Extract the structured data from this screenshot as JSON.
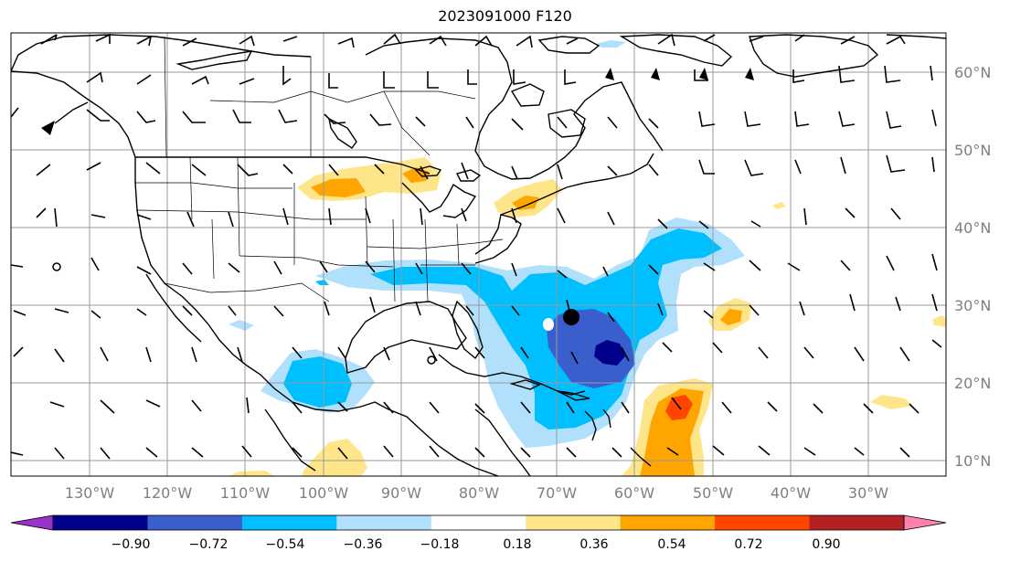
{
  "title": "2023091000 F120",
  "longitude_labels": [
    "130°W",
    "120°W",
    "110°W",
    "100°W",
    "90°W",
    "80°W",
    "70°W",
    "60°W",
    "50°W",
    "40°W",
    "30°W"
  ],
  "latitude_labels": [
    "60°N",
    "50°N",
    "40°N",
    "30°N",
    "20°N",
    "10°N"
  ],
  "colorbar": {
    "ticks": [
      "−0.90",
      "−0.72",
      "−0.54",
      "−0.36",
      "−0.18",
      "0.18",
      "0.36",
      "0.54",
      "0.72",
      "0.90"
    ],
    "colors": [
      "#9932cc",
      "#00008b",
      "#3a5fcd",
      "#00bfff",
      "#b0e0fb",
      "#ffffff",
      "#ffe58a",
      "#ffa500",
      "#ff4500",
      "#b22222",
      "#ff82ab"
    ]
  },
  "marker": "storm-center"
}
